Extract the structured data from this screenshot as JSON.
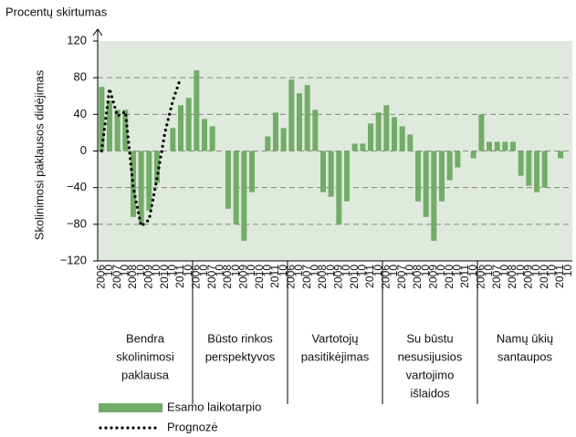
{
  "chart_data": {
    "type": "bar",
    "title": "Procentų skirtumas",
    "y_label": "Skolinimosi paklausos didėjimas",
    "ylim": [
      -120,
      120
    ],
    "yticks": [
      {
        "value": -120,
        "label": "−120"
      },
      {
        "value": -80,
        "label": "−80"
      },
      {
        "value": -40,
        "label": "−40"
      },
      0,
      40,
      80,
      120
    ],
    "grid": true,
    "categories": [
      "2006",
      "10",
      "2007",
      "10",
      "2008",
      "10",
      "2009",
      "10",
      "2010",
      "10",
      "2011",
      "10",
      "2006",
      "10",
      "2007",
      "10",
      "2008",
      "10",
      "2009",
      "10",
      "2010",
      "10",
      "2011",
      "10",
      "2006",
      "10",
      "2007",
      "10",
      "2008",
      "10",
      "2009",
      "10",
      "2010",
      "10",
      "2011",
      "10",
      "2006",
      "10",
      "2007",
      "10",
      "2008",
      "10",
      "2009",
      "10",
      "2010",
      "10",
      "2011",
      "10",
      "2006",
      "10",
      "2007",
      "10",
      "2008",
      "10",
      "2009",
      "10",
      "2010",
      "10",
      "2011",
      "10"
    ],
    "group_labels": [
      [
        "Bendra",
        "skolinimosi",
        "paklausa"
      ],
      [
        "Būsto rinkos",
        "perspektyvos"
      ],
      [
        "Vartotojų",
        "pasitikėjimas"
      ],
      [
        "Su būstu",
        "nesusijusios",
        "vartojimo",
        "išlaidos"
      ],
      [
        "Namų ūkių",
        "santaupos"
      ]
    ],
    "series": [
      {
        "name": "Esamo laikotarpio",
        "color": "#72ad67",
        "type": "bar",
        "values": [
          70,
          55,
          45,
          45,
          -72,
          -78,
          -65,
          -35,
          null,
          25,
          50,
          58,
          88,
          35,
          27,
          null,
          -63,
          -80,
          -98,
          -45,
          null,
          16,
          42,
          25,
          78,
          63,
          72,
          45,
          -45,
          -50,
          -80,
          -55,
          8,
          8,
          30,
          42,
          50,
          37,
          27,
          18,
          -55,
          -72,
          -98,
          -55,
          -32,
          -18,
          null,
          -8,
          40,
          10,
          10,
          10,
          10,
          -27,
          -38,
          -45,
          -40,
          null,
          -8,
          null
        ]
      },
      {
        "name": "Prognozė",
        "color": "#000000",
        "type": "line",
        "values": [
          0,
          68,
          38,
          43,
          -40,
          -82,
          -75,
          -30,
          20,
          55,
          80,
          null,
          null,
          null,
          null,
          null,
          null,
          null,
          null,
          null,
          null,
          null,
          null,
          null,
          null,
          null,
          null,
          null,
          null,
          null,
          null,
          null,
          null,
          null,
          null,
          null,
          null,
          null,
          null,
          null,
          null,
          null,
          null,
          null,
          null,
          null,
          null,
          null,
          null,
          null,
          null,
          null,
          null,
          null,
          null,
          null,
          null,
          null,
          null,
          null
        ]
      }
    ]
  }
}
